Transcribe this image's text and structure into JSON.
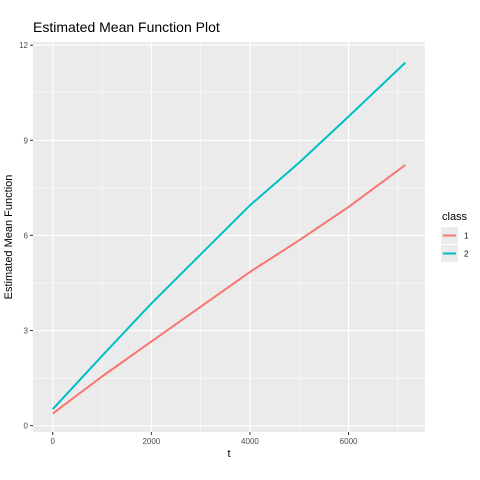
{
  "chart_data": {
    "type": "line",
    "title": "Estimated Mean Function Plot",
    "xlabel": "t",
    "ylabel": "Estimated Mean Function",
    "xlim": [
      -400,
      7550
    ],
    "ylim": [
      -0.2,
      12.1
    ],
    "xticks": [
      0,
      2000,
      4000,
      6000
    ],
    "xtick_labels": [
      "0",
      "2000",
      "4000",
      "6000"
    ],
    "yticks": [
      0,
      3,
      6,
      9,
      12
    ],
    "ytick_labels": [
      "0",
      "3",
      "6",
      "9",
      "12"
    ],
    "grid": true,
    "legend": {
      "title": "class",
      "position": "right"
    },
    "series": [
      {
        "name": "1",
        "color": "#F8766D",
        "points": [
          [
            0,
            0.38
          ],
          [
            1000,
            1.55
          ],
          [
            2000,
            2.65
          ],
          [
            3000,
            3.75
          ],
          [
            4000,
            4.85
          ],
          [
            5000,
            5.85
          ],
          [
            6000,
            6.9
          ],
          [
            7150,
            8.22
          ]
        ]
      },
      {
        "name": "2",
        "color": "#00BFC4",
        "points": [
          [
            0,
            0.52
          ],
          [
            1000,
            2.2
          ],
          [
            2000,
            3.85
          ],
          [
            3000,
            5.4
          ],
          [
            4000,
            6.95
          ],
          [
            5000,
            8.3
          ],
          [
            6000,
            9.75
          ],
          [
            7150,
            11.45
          ]
        ]
      }
    ]
  }
}
